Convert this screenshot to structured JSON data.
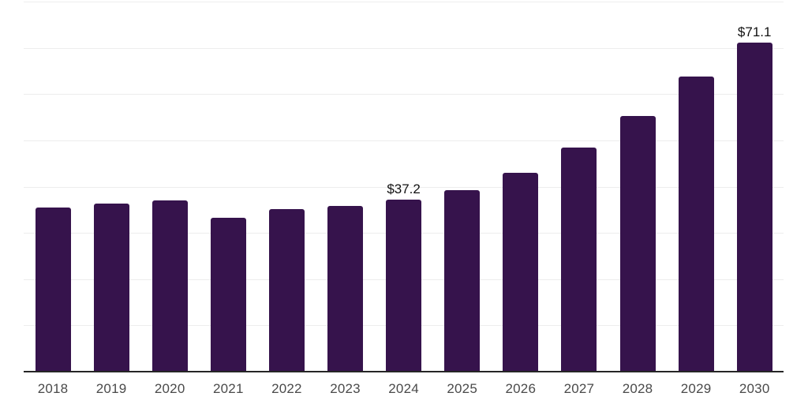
{
  "chart_data": {
    "type": "bar",
    "title": "",
    "xlabel": "",
    "ylabel": "",
    "categories": [
      "2018",
      "2019",
      "2020",
      "2021",
      "2022",
      "2023",
      "2024",
      "2025",
      "2026",
      "2027",
      "2028",
      "2029",
      "2030"
    ],
    "values": [
      35.4,
      36.4,
      37.0,
      33.2,
      35.1,
      35.8,
      37.2,
      39.3,
      42.9,
      48.4,
      55.3,
      63.8,
      71.1
    ],
    "data_labels": [
      "",
      "",
      "",
      "",
      "",
      "",
      "$37.2",
      "",
      "",
      "",
      "",
      "",
      "$71.1"
    ],
    "ylim": [
      0,
      80
    ],
    "gridline_step": 10,
    "grid": "horizontal",
    "legend_position": "none",
    "y_axis_labels_visible": false,
    "colors": {
      "bar": "#36134c",
      "axis_line": "#262626",
      "gridline": "#ededed",
      "tick_label": "#4a4a4a",
      "data_label": "#111111",
      "background": "#ffffff"
    }
  }
}
